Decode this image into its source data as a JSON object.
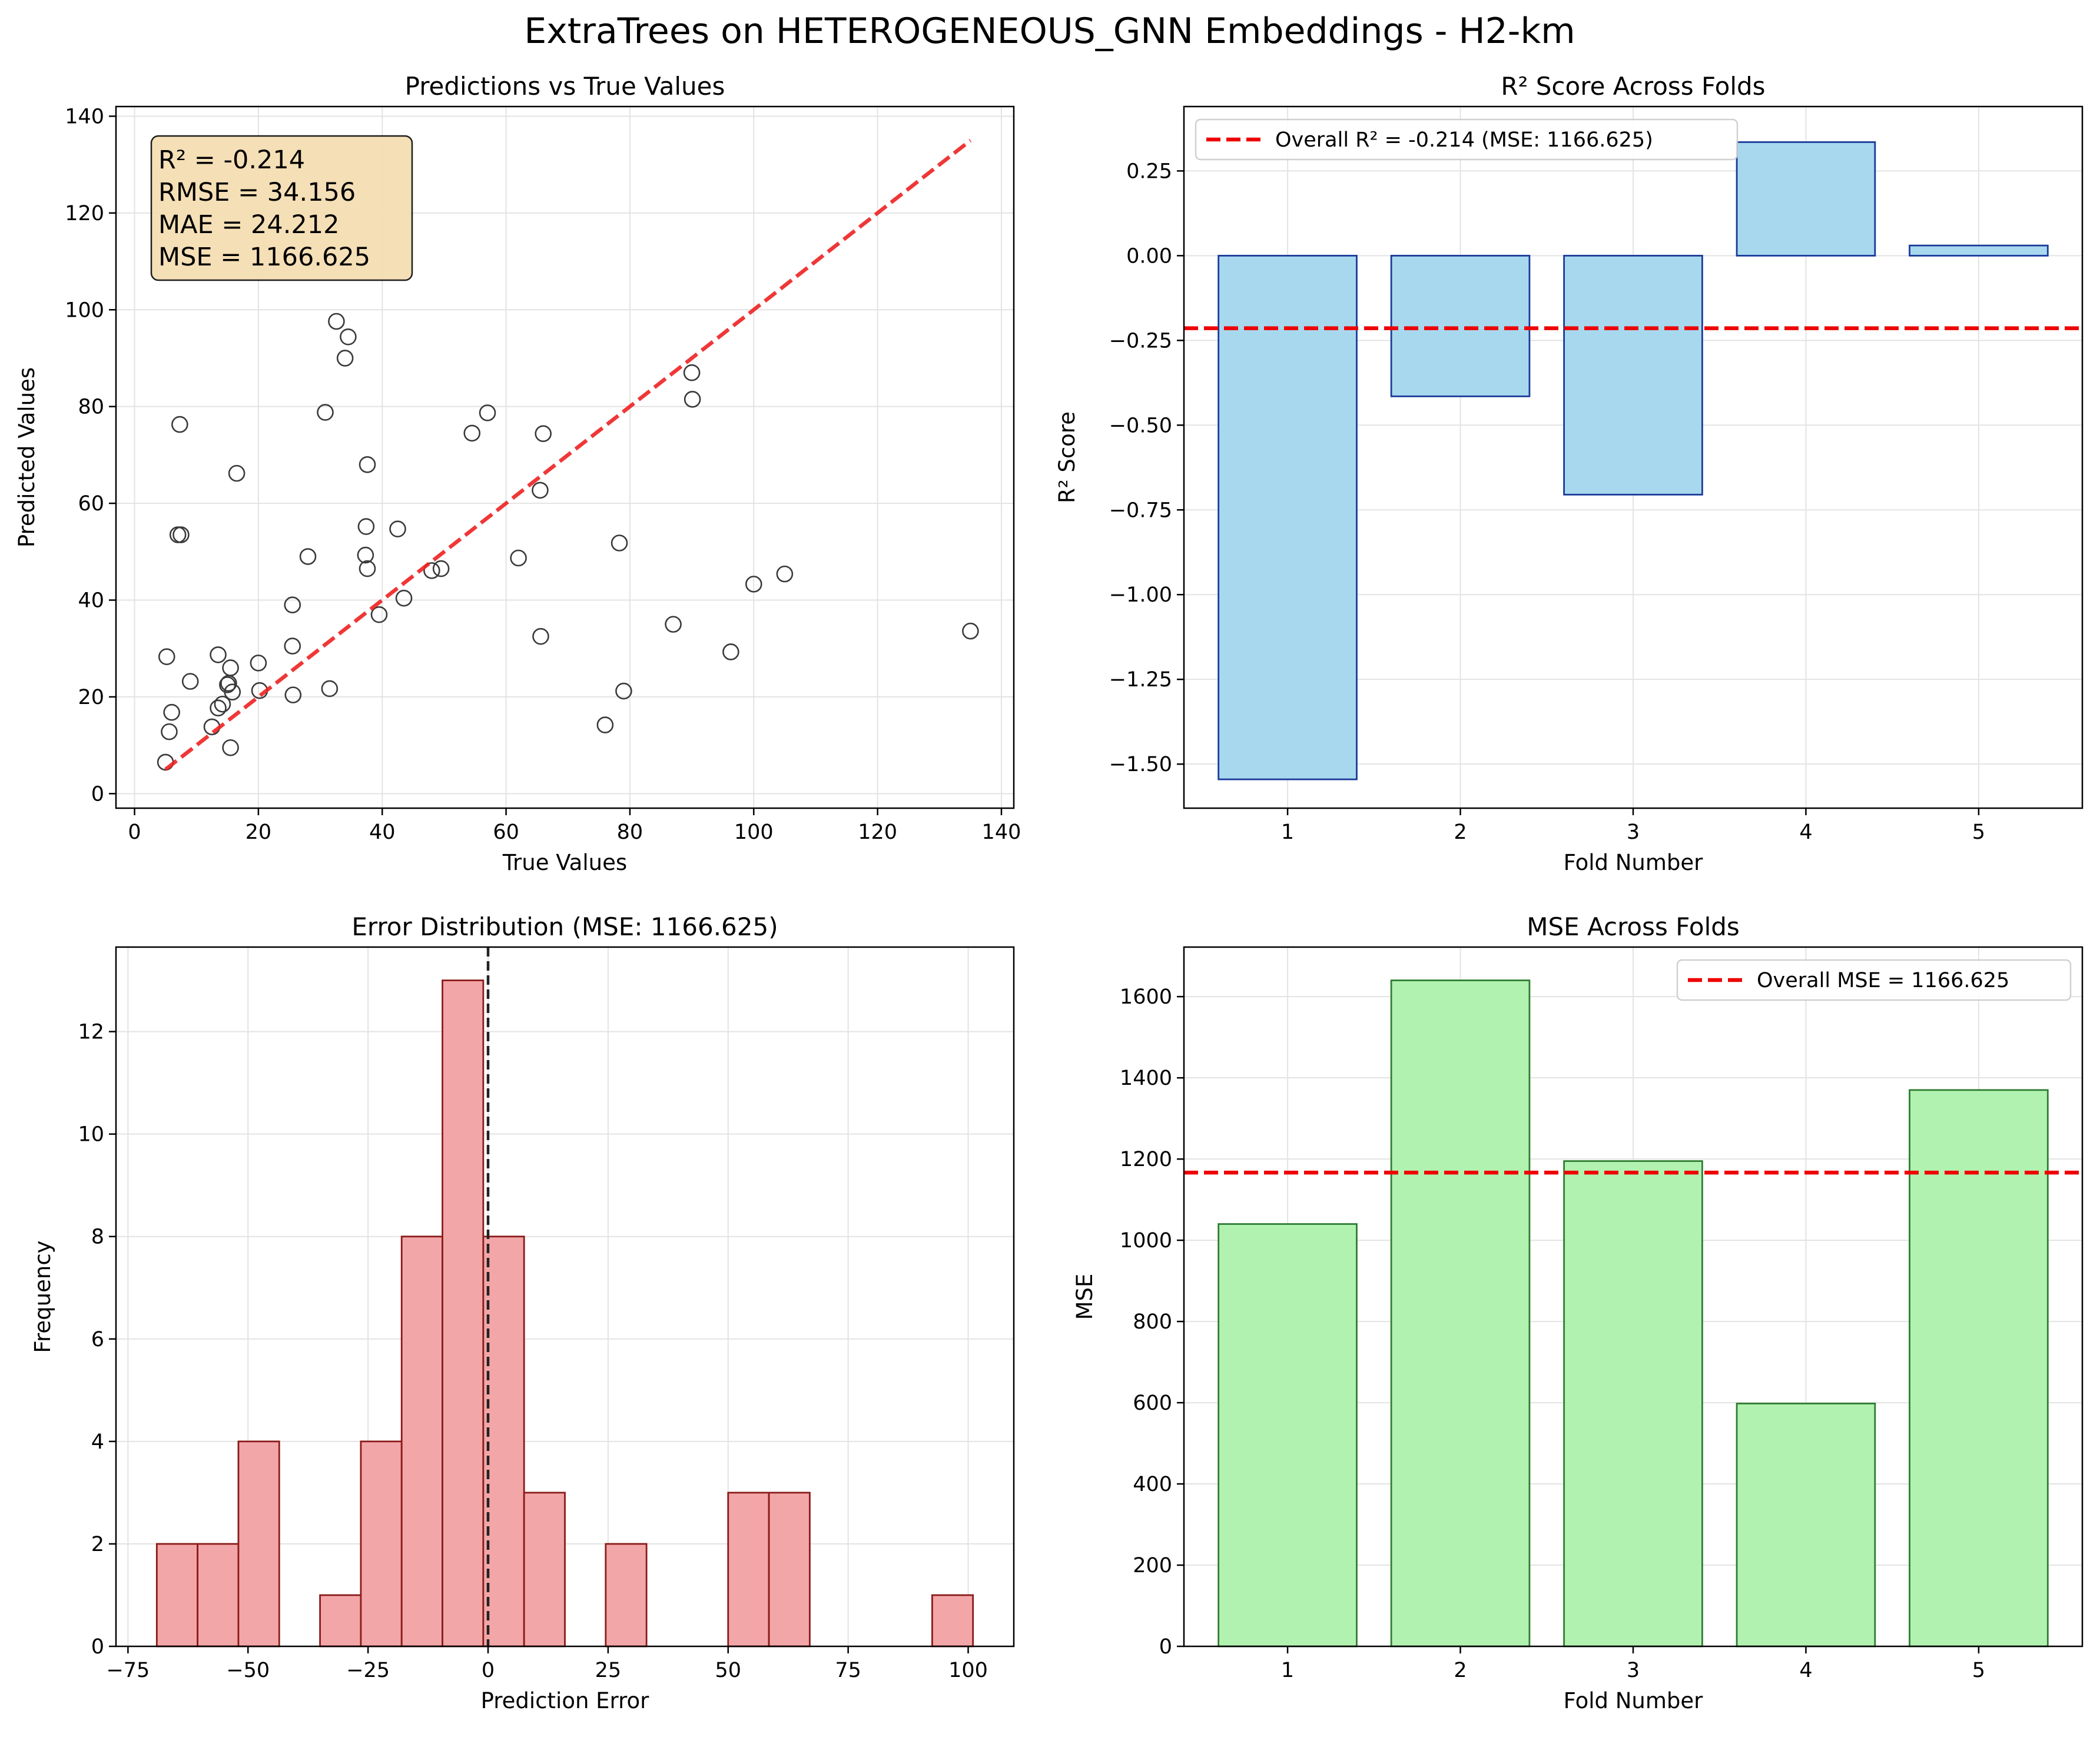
{
  "suptitle": "ExtraTrees on HETEROGENEOUS_GNN Embeddings - H2-km",
  "colors": {
    "diagonal": "#ee2222",
    "overall_line": "#ee0000",
    "r2_bar_fill": "#a8d8ee",
    "r2_bar_edge": "#1a3a9a",
    "hist_fill": "#f2a6a8",
    "hist_edge": "#8b1a1a",
    "mse_bar_fill": "#b2f2b0",
    "mse_bar_edge": "#2e7d32",
    "stats_box_fill": "#f5deb3",
    "grid": "#e3e3e3"
  },
  "chart_data": [
    {
      "id": "scatter",
      "type": "scatter",
      "title": "Predictions vs True Values",
      "xlabel": "True Values",
      "ylabel": "Predicted Values",
      "xlim": [
        -3,
        142
      ],
      "ylim": [
        -3,
        142
      ],
      "xticks": [
        0,
        20,
        40,
        60,
        80,
        100,
        120,
        140
      ],
      "yticks": [
        0,
        20,
        40,
        60,
        80,
        100,
        120,
        140
      ],
      "grid": true,
      "diagonal": [
        5,
        135
      ],
      "stats": [
        "R² = -0.214",
        "RMSE = 34.156",
        "MAE = 24.212",
        "MSE = 1166.625"
      ],
      "points": [
        [
          5,
          6.5
        ],
        [
          5.2,
          28.3
        ],
        [
          5.6,
          12.8
        ],
        [
          6,
          16.8
        ],
        [
          7,
          53.5
        ],
        [
          7.5,
          53.5
        ],
        [
          7.3,
          76.3
        ],
        [
          9,
          23.2
        ],
        [
          12.5,
          13.8
        ],
        [
          13.5,
          28.7
        ],
        [
          13.5,
          17.7
        ],
        [
          14.2,
          18.5
        ],
        [
          15,
          22.5
        ],
        [
          15.2,
          22.8
        ],
        [
          15.5,
          26
        ],
        [
          15.5,
          9.5
        ],
        [
          15.8,
          21
        ],
        [
          16.5,
          66.2
        ],
        [
          20,
          27
        ],
        [
          20.2,
          21.3
        ],
        [
          25.5,
          39
        ],
        [
          25.5,
          30.5
        ],
        [
          25.6,
          20.4
        ],
        [
          28,
          49
        ],
        [
          30.8,
          78.8
        ],
        [
          31.5,
          21.7
        ],
        [
          32.6,
          97.6
        ],
        [
          34,
          90
        ],
        [
          34.5,
          94.4
        ],
        [
          37.3,
          49.3
        ],
        [
          37.4,
          55.2
        ],
        [
          37.6,
          68
        ],
        [
          37.6,
          46.5
        ],
        [
          39.5,
          37
        ],
        [
          42.5,
          54.7
        ],
        [
          43.5,
          40.4
        ],
        [
          48,
          46.1
        ],
        [
          49.5,
          46.5
        ],
        [
          54.5,
          74.5
        ],
        [
          57,
          78.7
        ],
        [
          62,
          48.7
        ],
        [
          65.5,
          62.7
        ],
        [
          65.6,
          32.5
        ],
        [
          66,
          74.4
        ],
        [
          76,
          14.2
        ],
        [
          78.3,
          51.8
        ],
        [
          79,
          21.2
        ],
        [
          87,
          35
        ],
        [
          90,
          87
        ],
        [
          90.1,
          81.5
        ],
        [
          96.3,
          29.3
        ],
        [
          100,
          43.3
        ],
        [
          105,
          45.4
        ],
        [
          135,
          33.6
        ]
      ]
    },
    {
      "id": "r2_folds",
      "type": "bar",
      "title": "R² Score Across Folds",
      "xlabel": "Fold Number",
      "ylabel": "R² Score",
      "categories": [
        "1",
        "2",
        "3",
        "4",
        "5"
      ],
      "values": [
        -1.545,
        -0.415,
        -0.705,
        0.335,
        0.03
      ],
      "xlim": [
        0.4,
        5.6
      ],
      "ylim": [
        -1.63,
        0.44
      ],
      "yticks": [
        -1.5,
        -1.25,
        -1.0,
        -0.75,
        -0.5,
        -0.25,
        0.0,
        0.25
      ],
      "ytick_labels": [
        "−1.50",
        "−1.25",
        "−1.00",
        "−0.75",
        "−0.50",
        "−0.25",
        "0.00",
        "0.25"
      ],
      "overall": -0.214,
      "legend": "Overall R² = -0.214 (MSE: 1166.625)",
      "legend_position": "top-left",
      "grid": true
    },
    {
      "id": "error_hist",
      "type": "bar",
      "title": "Error Distribution (MSE: 1166.625)",
      "xlabel": "Prediction Error",
      "ylabel": "Frequency",
      "bins": [
        [
          -69,
          -60.5,
          2
        ],
        [
          -60.5,
          -52,
          2
        ],
        [
          -52,
          -43.5,
          4
        ],
        [
          -35,
          -26.5,
          1
        ],
        [
          -26.5,
          -18,
          4
        ],
        [
          -18,
          -9.5,
          8
        ],
        [
          -9.5,
          -1,
          13
        ],
        [
          -1,
          7.5,
          8
        ],
        [
          7.5,
          16,
          3
        ],
        [
          24.5,
          33,
          2
        ],
        [
          50,
          58.5,
          3
        ],
        [
          58.5,
          67,
          3
        ],
        [
          92.5,
          101,
          1
        ]
      ],
      "xlim": [
        -77.5,
        109.5
      ],
      "ylim": [
        0,
        13.65
      ],
      "xticks": [
        -75,
        -50,
        -25,
        0,
        25,
        50,
        75,
        100
      ],
      "xtick_labels": [
        "−75",
        "−50",
        "−25",
        "0",
        "25",
        "50",
        "75",
        "100"
      ],
      "yticks": [
        0,
        2,
        4,
        6,
        8,
        10,
        12
      ],
      "zero_line": 0,
      "grid": true
    },
    {
      "id": "mse_folds",
      "type": "bar",
      "title": "MSE Across Folds",
      "xlabel": "Fold Number",
      "ylabel": "MSE",
      "categories": [
        "1",
        "2",
        "3",
        "4",
        "5"
      ],
      "values": [
        1040,
        1640,
        1195,
        598,
        1370
      ],
      "xlim": [
        0.4,
        5.6
      ],
      "ylim": [
        0,
        1722
      ],
      "yticks": [
        0,
        200,
        400,
        600,
        800,
        1000,
        1200,
        1400,
        1600
      ],
      "overall": 1166.625,
      "legend": "Overall MSE = 1166.625",
      "legend_position": "top-right",
      "grid": true
    }
  ]
}
